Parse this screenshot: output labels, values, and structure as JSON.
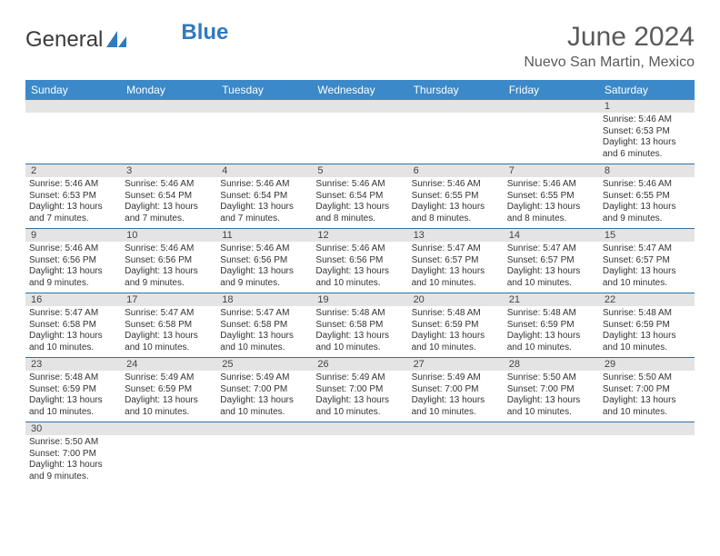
{
  "logo": {
    "text1": "General",
    "text2": "Blue"
  },
  "title": "June 2024",
  "location": "Nuevo San Martin, Mexico",
  "colors": {
    "header_bg": "#3b89c8",
    "header_text": "#ffffff",
    "daynum_bg": "#e4e4e4",
    "row_border": "#2f6fa8",
    "body_text": "#333333",
    "title_text": "#5a5a5a"
  },
  "weekdays": [
    "Sunday",
    "Monday",
    "Tuesday",
    "Wednesday",
    "Thursday",
    "Friday",
    "Saturday"
  ],
  "weeks": [
    [
      null,
      null,
      null,
      null,
      null,
      null,
      {
        "n": "1",
        "sunrise": "5:46 AM",
        "sunset": "6:53 PM",
        "daylight": "13 hours and 6 minutes."
      }
    ],
    [
      {
        "n": "2",
        "sunrise": "5:46 AM",
        "sunset": "6:53 PM",
        "daylight": "13 hours and 7 minutes."
      },
      {
        "n": "3",
        "sunrise": "5:46 AM",
        "sunset": "6:54 PM",
        "daylight": "13 hours and 7 minutes."
      },
      {
        "n": "4",
        "sunrise": "5:46 AM",
        "sunset": "6:54 PM",
        "daylight": "13 hours and 7 minutes."
      },
      {
        "n": "5",
        "sunrise": "5:46 AM",
        "sunset": "6:54 PM",
        "daylight": "13 hours and 8 minutes."
      },
      {
        "n": "6",
        "sunrise": "5:46 AM",
        "sunset": "6:55 PM",
        "daylight": "13 hours and 8 minutes."
      },
      {
        "n": "7",
        "sunrise": "5:46 AM",
        "sunset": "6:55 PM",
        "daylight": "13 hours and 8 minutes."
      },
      {
        "n": "8",
        "sunrise": "5:46 AM",
        "sunset": "6:55 PM",
        "daylight": "13 hours and 9 minutes."
      }
    ],
    [
      {
        "n": "9",
        "sunrise": "5:46 AM",
        "sunset": "6:56 PM",
        "daylight": "13 hours and 9 minutes."
      },
      {
        "n": "10",
        "sunrise": "5:46 AM",
        "sunset": "6:56 PM",
        "daylight": "13 hours and 9 minutes."
      },
      {
        "n": "11",
        "sunrise": "5:46 AM",
        "sunset": "6:56 PM",
        "daylight": "13 hours and 9 minutes."
      },
      {
        "n": "12",
        "sunrise": "5:46 AM",
        "sunset": "6:56 PM",
        "daylight": "13 hours and 10 minutes."
      },
      {
        "n": "13",
        "sunrise": "5:47 AM",
        "sunset": "6:57 PM",
        "daylight": "13 hours and 10 minutes."
      },
      {
        "n": "14",
        "sunrise": "5:47 AM",
        "sunset": "6:57 PM",
        "daylight": "13 hours and 10 minutes."
      },
      {
        "n": "15",
        "sunrise": "5:47 AM",
        "sunset": "6:57 PM",
        "daylight": "13 hours and 10 minutes."
      }
    ],
    [
      {
        "n": "16",
        "sunrise": "5:47 AM",
        "sunset": "6:58 PM",
        "daylight": "13 hours and 10 minutes."
      },
      {
        "n": "17",
        "sunrise": "5:47 AM",
        "sunset": "6:58 PM",
        "daylight": "13 hours and 10 minutes."
      },
      {
        "n": "18",
        "sunrise": "5:47 AM",
        "sunset": "6:58 PM",
        "daylight": "13 hours and 10 minutes."
      },
      {
        "n": "19",
        "sunrise": "5:48 AM",
        "sunset": "6:58 PM",
        "daylight": "13 hours and 10 minutes."
      },
      {
        "n": "20",
        "sunrise": "5:48 AM",
        "sunset": "6:59 PM",
        "daylight": "13 hours and 10 minutes."
      },
      {
        "n": "21",
        "sunrise": "5:48 AM",
        "sunset": "6:59 PM",
        "daylight": "13 hours and 10 minutes."
      },
      {
        "n": "22",
        "sunrise": "5:48 AM",
        "sunset": "6:59 PM",
        "daylight": "13 hours and 10 minutes."
      }
    ],
    [
      {
        "n": "23",
        "sunrise": "5:48 AM",
        "sunset": "6:59 PM",
        "daylight": "13 hours and 10 minutes."
      },
      {
        "n": "24",
        "sunrise": "5:49 AM",
        "sunset": "6:59 PM",
        "daylight": "13 hours and 10 minutes."
      },
      {
        "n": "25",
        "sunrise": "5:49 AM",
        "sunset": "7:00 PM",
        "daylight": "13 hours and 10 minutes."
      },
      {
        "n": "26",
        "sunrise": "5:49 AM",
        "sunset": "7:00 PM",
        "daylight": "13 hours and 10 minutes."
      },
      {
        "n": "27",
        "sunrise": "5:49 AM",
        "sunset": "7:00 PM",
        "daylight": "13 hours and 10 minutes."
      },
      {
        "n": "28",
        "sunrise": "5:50 AM",
        "sunset": "7:00 PM",
        "daylight": "13 hours and 10 minutes."
      },
      {
        "n": "29",
        "sunrise": "5:50 AM",
        "sunset": "7:00 PM",
        "daylight": "13 hours and 10 minutes."
      }
    ],
    [
      {
        "n": "30",
        "sunrise": "5:50 AM",
        "sunset": "7:00 PM",
        "daylight": "13 hours and 9 minutes."
      },
      null,
      null,
      null,
      null,
      null,
      null
    ]
  ],
  "labels": {
    "sunrise": "Sunrise: ",
    "sunset": "Sunset: ",
    "daylight": "Daylight: "
  }
}
